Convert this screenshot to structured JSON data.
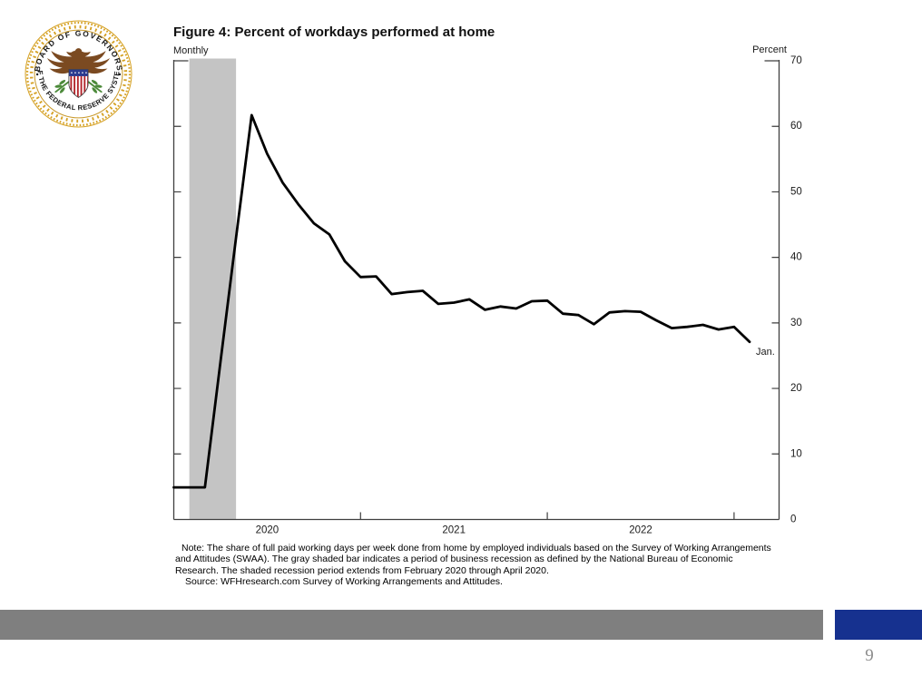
{
  "slide": {
    "page_number": "9"
  },
  "seal": {
    "text_top": "BOARD OF GOVERNORS",
    "text_bottom": "OF THE FEDERAL RESERVE SYSTEM"
  },
  "figure": {
    "title": "Figure 4: Percent of workdays performed at home",
    "freq_label": "Monthly",
    "unit_label": "Percent",
    "note_lines": [
      "Note: The share of full paid working days per week done from home by employed individuals based on the Survey of Working Arrangements",
      "and Attitudes (SWAA). The gray shaded bar indicates a period of business recession as defined by the National Bureau of Economic",
      "Research. The shaded recession period extends from February 2020 through April 2020.",
      "Source: WFHresearch.com Survey of Working Arrangements and Attitudes."
    ]
  },
  "chart_data": {
    "type": "line",
    "title": "Figure 4: Percent of workdays performed at home",
    "frequency": "Monthly",
    "ylabel": "Percent",
    "ylim": [
      0,
      70
    ],
    "yticks": [
      0,
      10,
      20,
      30,
      40,
      50,
      60,
      70
    ],
    "grid": false,
    "legend": false,
    "x": [
      "2019-12",
      "2020-01",
      "2020-02",
      "2020-03",
      "2020-04",
      "2020-05",
      "2020-06",
      "2020-07",
      "2020-08",
      "2020-09",
      "2020-10",
      "2020-11",
      "2020-12",
      "2021-01",
      "2021-02",
      "2021-03",
      "2021-04",
      "2021-05",
      "2021-06",
      "2021-07",
      "2021-08",
      "2021-09",
      "2021-10",
      "2021-11",
      "2021-12",
      "2022-01",
      "2022-02",
      "2022-03",
      "2022-04",
      "2022-05",
      "2022-06",
      "2022-07",
      "2022-08",
      "2022-09",
      "2022-10",
      "2022-11",
      "2022-12",
      "2023-01"
    ],
    "series": [
      {
        "name": "Percent of workdays performed at home",
        "color": "#000000",
        "values": [
          4.9,
          4.9,
          4.9,
          24.0,
          43.0,
          61.7,
          55.8,
          51.4,
          48.1,
          45.2,
          43.5,
          39.4,
          37.0,
          37.1,
          34.4,
          34.7,
          34.9,
          32.9,
          33.1,
          33.6,
          32.0,
          32.5,
          32.2,
          33.3,
          33.4,
          31.4,
          31.2,
          29.8,
          31.6,
          31.8,
          31.7,
          30.4,
          29.2,
          29.4,
          29.7,
          29.0,
          29.4,
          27.1
        ]
      }
    ],
    "xtick_year_labels": [
      "2020",
      "2021",
      "2022"
    ],
    "end_label": "Jan.",
    "recession_band": {
      "from": "2020-02",
      "through": "2020-04",
      "color": "#c4c4c4"
    },
    "axis_color": "#3f3f3f"
  },
  "footer": {
    "bar_color": "#7f7f7f",
    "accent_color": "#16318f"
  }
}
